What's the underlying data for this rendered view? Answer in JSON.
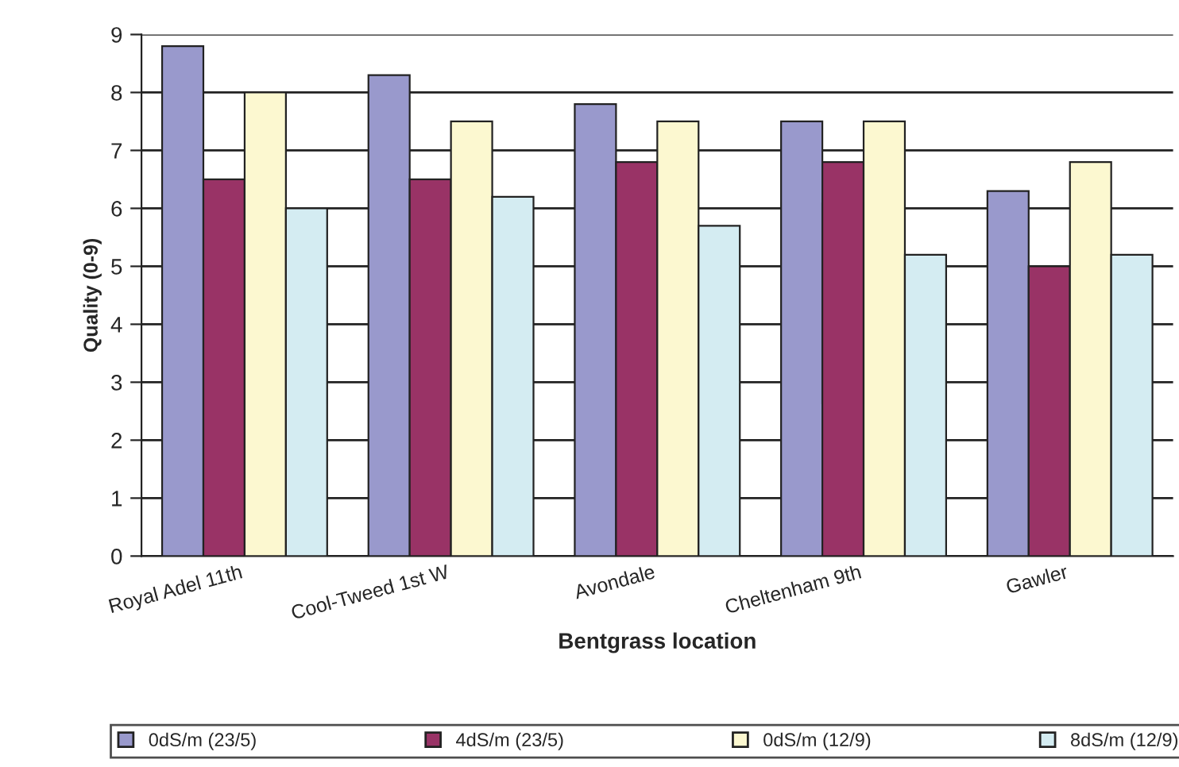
{
  "chart_data": {
    "type": "bar",
    "xlabel": "Bentgrass location",
    "ylabel": "Quality (0-9)",
    "categories": [
      "Royal Adel 11th",
      "Cool-Tweed 1st W",
      "Avondale",
      "Cheltenham 9th",
      "Gawler"
    ],
    "series": [
      {
        "name": "0dS/m (23/5)",
        "color": "#9999cc",
        "values": [
          8.8,
          8.3,
          7.8,
          7.5,
          6.3
        ]
      },
      {
        "name": "4dS/m (23/5)",
        "color": "#993366",
        "values": [
          6.5,
          6.5,
          6.8,
          6.8,
          5.0
        ]
      },
      {
        "name": "0dS/m (12/9)",
        "color": "#fcf8d0",
        "values": [
          8.0,
          7.5,
          7.5,
          7.5,
          6.8
        ]
      },
      {
        "name": "8dS/m (12/9)",
        "color": "#d4ecf2",
        "values": [
          6.0,
          6.2,
          5.7,
          5.2,
          5.2
        ]
      }
    ],
    "ylim": [
      0,
      9
    ],
    "yticks": [
      0,
      1,
      2,
      3,
      4,
      5,
      6,
      7,
      8,
      9
    ],
    "grid": "y",
    "legend": "bottom"
  }
}
